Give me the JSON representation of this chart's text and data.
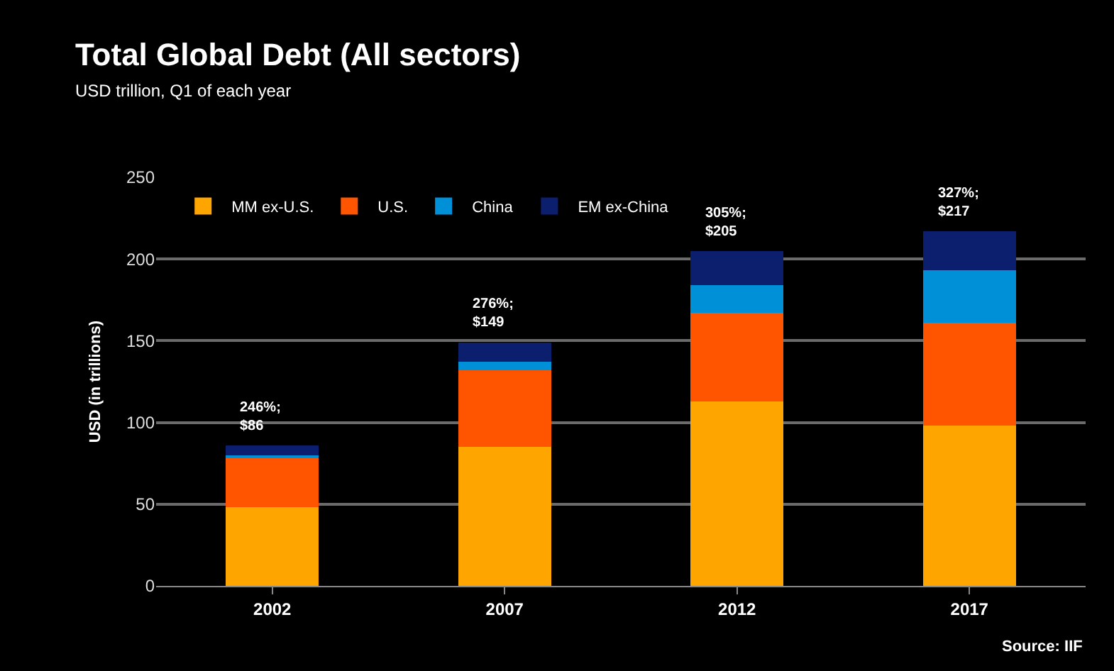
{
  "chart_data": {
    "type": "bar",
    "title": "Total Global Debt (All sectors)",
    "subtitle": "USD trillion, Q1 of each year",
    "ylabel": "USD (in trillions)",
    "categories": [
      "2002",
      "2007",
      "2012",
      "2017"
    ],
    "stacked": true,
    "series": [
      {
        "name": "MM ex-U.S.",
        "color": "#ffa500",
        "values": [
          48,
          85,
          113,
          98
        ]
      },
      {
        "name": "U.S.",
        "color": "#ff5500",
        "values": [
          30,
          47,
          54,
          63
        ]
      },
      {
        "name": "China",
        "color": "#0090d8",
        "values": [
          2,
          5,
          17,
          32
        ]
      },
      {
        "name": "EM ex-China",
        "color": "#0c1f6e",
        "values": [
          6,
          12,
          21,
          24
        ]
      }
    ],
    "totals": [
      "246%;\n$86",
      "276%;\n$149",
      "305%;\n$205",
      "327%;\n$217"
    ],
    "ylim": [
      0,
      250
    ],
    "yticks": [
      0,
      50,
      100,
      150,
      200,
      250
    ],
    "grid": "y",
    "legend": "top left",
    "annotations": [
      "Source: IIF"
    ]
  }
}
